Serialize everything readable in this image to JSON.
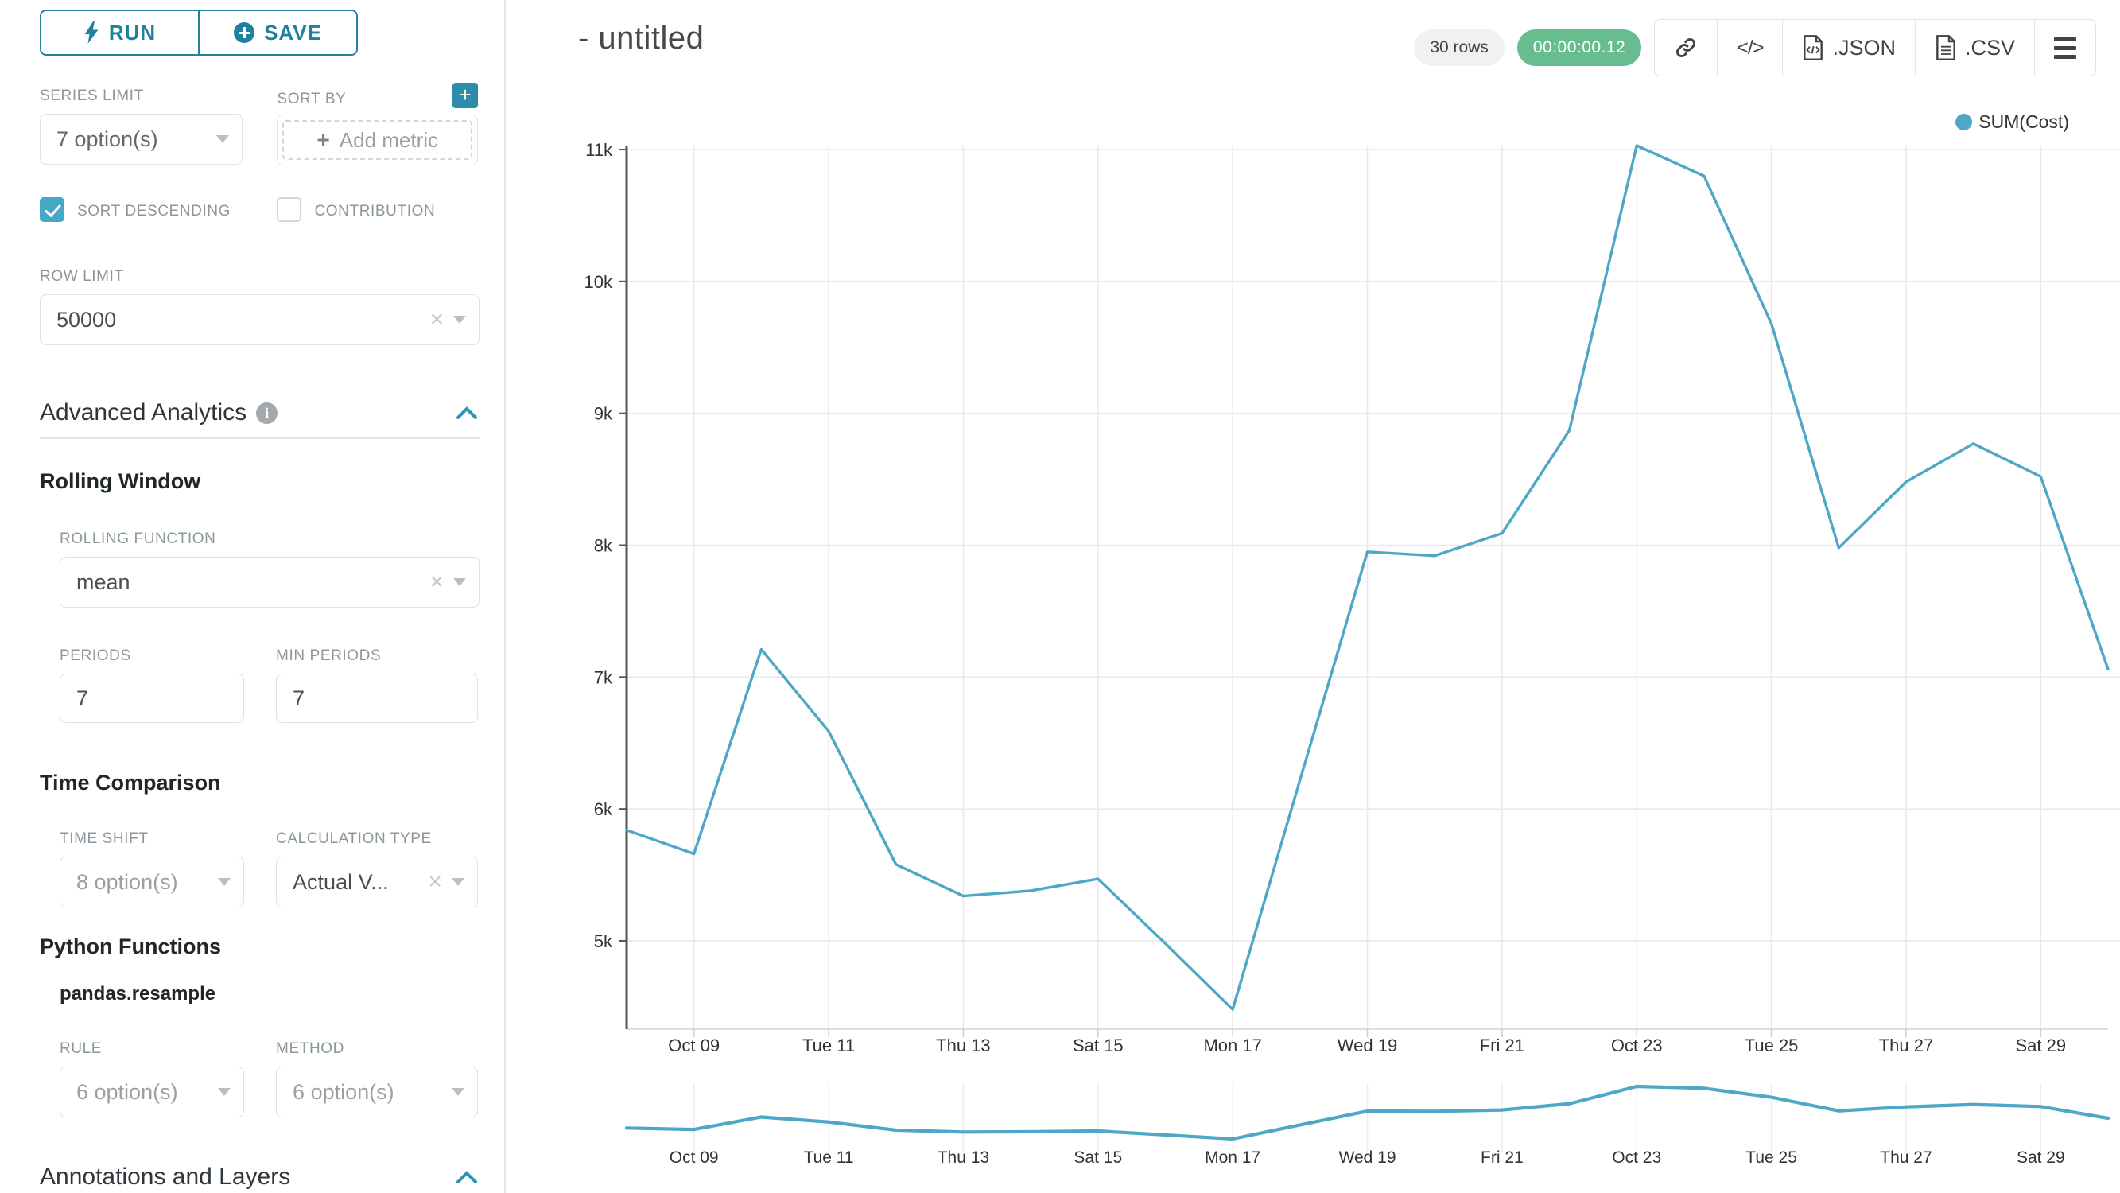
{
  "sidebar": {
    "run_button": "RUN",
    "save_button": "SAVE",
    "series_limit": {
      "label": "SERIES LIMIT",
      "value": "7 option(s)"
    },
    "sort_by": {
      "label": "SORT BY",
      "placeholder": "Add metric"
    },
    "sort_descending": {
      "label": "SORT DESCENDING",
      "checked": true
    },
    "contribution": {
      "label": "CONTRIBUTION",
      "checked": false
    },
    "row_limit": {
      "label": "ROW LIMIT",
      "value": "50000"
    },
    "advanced_analytics_title": "Advanced Analytics",
    "rolling_window": {
      "title": "Rolling Window",
      "rolling_function": {
        "label": "ROLLING FUNCTION",
        "value": "mean"
      },
      "periods": {
        "label": "PERIODS",
        "value": "7"
      },
      "min_periods": {
        "label": "MIN PERIODS",
        "value": "7"
      }
    },
    "time_comparison": {
      "title": "Time Comparison",
      "time_shift": {
        "label": "TIME SHIFT",
        "value": "8 option(s)"
      },
      "calculation_type": {
        "label": "CALCULATION TYPE",
        "value": "Actual V..."
      }
    },
    "python_functions": {
      "title": "Python Functions",
      "function_name": "pandas.resample",
      "rule": {
        "label": "RULE",
        "value": "6 option(s)"
      },
      "method": {
        "label": "METHOD",
        "value": "6 option(s)"
      }
    },
    "annotations_title": "Annotations and Layers"
  },
  "header": {
    "title": "- untitled",
    "rows_badge": "30 rows",
    "timer_badge": "00:00:00.12",
    "code_icon_label": "</>",
    "json_button": ".JSON",
    "csv_button": ".CSV"
  },
  "colors": {
    "line": "#4da7c6",
    "accent_teal": "#20809f",
    "timer_green": "#68bd8f"
  },
  "chart_data": {
    "type": "line",
    "title": "",
    "legend": [
      "SUM(Cost)"
    ],
    "legend_position": "top-right",
    "grid": true,
    "x": [
      "Oct 08",
      "Oct 09",
      "Oct 10",
      "Oct 11",
      "Oct 12",
      "Oct 13",
      "Oct 14",
      "Oct 15",
      "Oct 16",
      "Oct 17",
      "Oct 18",
      "Oct 19",
      "Oct 20",
      "Oct 21",
      "Oct 22",
      "Oct 23",
      "Oct 24",
      "Oct 25",
      "Oct 26",
      "Oct 27",
      "Oct 28",
      "Oct 29",
      "Oct 30"
    ],
    "series": [
      {
        "name": "SUM(Cost)",
        "values": [
          5840,
          5660,
          7210,
          6590,
          5580,
          5340,
          5380,
          5470,
          4980,
          4480,
          6220,
          7950,
          7920,
          8090,
          8870,
          11030,
          10800,
          9680,
          7980,
          8480,
          8770,
          8520,
          7060
        ]
      }
    ],
    "x_tick_labels": [
      "Oct 09",
      "Tue 11",
      "Thu 13",
      "Sat 15",
      "Mon 17",
      "Wed 19",
      "Fri 21",
      "Oct 23",
      "Tue 25",
      "Thu 27",
      "Sat 29"
    ],
    "y_tick_labels": [
      "5k",
      "6k",
      "7k",
      "8k",
      "9k",
      "10k",
      "11k"
    ],
    "ylim": [
      4300,
      11200
    ],
    "preview_strip": true
  }
}
